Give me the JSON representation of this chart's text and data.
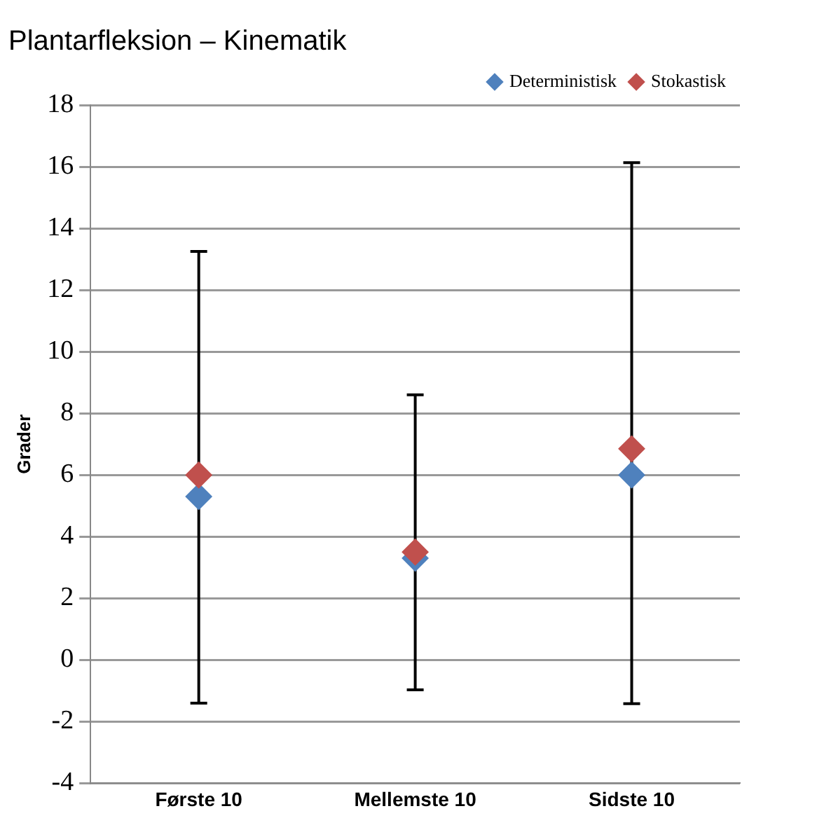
{
  "chart_data": {
    "type": "scatter",
    "title": "Plantarfleksion – Kinematik",
    "ylabel": "Grader",
    "categories": [
      "Første 10",
      "Mellemste 10",
      "Sidste 10"
    ],
    "series": [
      {
        "name": "Deterministisk",
        "color": "#4f81bd",
        "values": [
          5.3,
          3.3,
          6.0
        ]
      },
      {
        "name": "Stokastisk",
        "color": "#c0504d",
        "values": [
          6.0,
          3.5,
          6.85
        ],
        "errors": [
          [
            -1.4,
            13.25
          ],
          [
            -0.97,
            8.6
          ],
          [
            -1.42,
            16.13
          ]
        ]
      }
    ],
    "ylim": [
      -4,
      18
    ],
    "yticks": [
      -4,
      -2,
      0,
      2,
      4,
      6,
      8,
      10,
      12,
      14,
      16,
      18
    ],
    "grid": "y",
    "legend": "top right",
    "marker": "diamond"
  }
}
